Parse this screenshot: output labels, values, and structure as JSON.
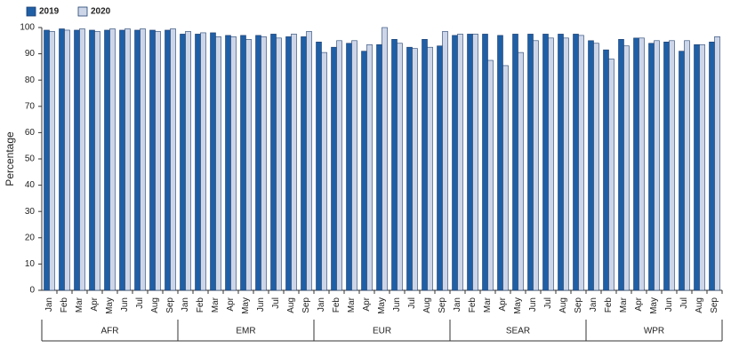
{
  "chart_data": {
    "type": "bar",
    "y_label": "Percentage",
    "groups": [
      "AFR",
      "EMR",
      "EUR",
      "SEAR",
      "WPR"
    ],
    "categories": [
      "Jan",
      "Feb",
      "Mar",
      "Apr",
      "May",
      "Jun",
      "Jul",
      "Aug",
      "Sep",
      "Jan",
      "Feb",
      "Mar",
      "Apr",
      "May",
      "Jun",
      "Jul",
      "Aug",
      "Sep",
      "Jan",
      "Feb",
      "Mar",
      "Apr",
      "May",
      "Jun",
      "Jul",
      "Aug",
      "Sep",
      "Jan",
      "Feb",
      "Mar",
      "Apr",
      "May",
      "Jun",
      "Jul",
      "Aug",
      "Sep",
      "Jan",
      "Feb",
      "Mar",
      "Apr",
      "May",
      "Jun",
      "Jul",
      "Aug",
      "Sep"
    ],
    "series": [
      {
        "name": "2019",
        "color": "#1f5fa6",
        "values": [
          99,
          99.5,
          99,
          99,
          99,
          99,
          99,
          99,
          99,
          97.5,
          97.5,
          98,
          97,
          97,
          97,
          97.5,
          96.5,
          96.5,
          94.5,
          92.5,
          94,
          91,
          93.5,
          95.5,
          92.5,
          95.5,
          93,
          97,
          97.5,
          97.5,
          97,
          97.5,
          97.5,
          97.5,
          97.5,
          97.5,
          95,
          91.5,
          95.5,
          96,
          94,
          94.5,
          91,
          93.5,
          94.5
        ]
      },
      {
        "name": "2020",
        "color": "#cdd6e8",
        "values": [
          98.5,
          99,
          99.5,
          98.5,
          99.5,
          99.5,
          99.5,
          98.5,
          99.5,
          98.5,
          98,
          96.5,
          96.5,
          95.5,
          96.5,
          96,
          97.5,
          98.5,
          90.5,
          95,
          95,
          93.5,
          100,
          94,
          92,
          92.5,
          98.5,
          97.5,
          97.5,
          87.5,
          85.5,
          90.5,
          95,
          96,
          96,
          97,
          94,
          88,
          93,
          96,
          95,
          95,
          95,
          93.5,
          96.5
        ]
      }
    ],
    "ylim": [
      0,
      100
    ],
    "yticks": [
      0,
      10,
      20,
      30,
      40,
      50,
      60,
      70,
      80,
      90,
      100
    ],
    "grid": false
  }
}
